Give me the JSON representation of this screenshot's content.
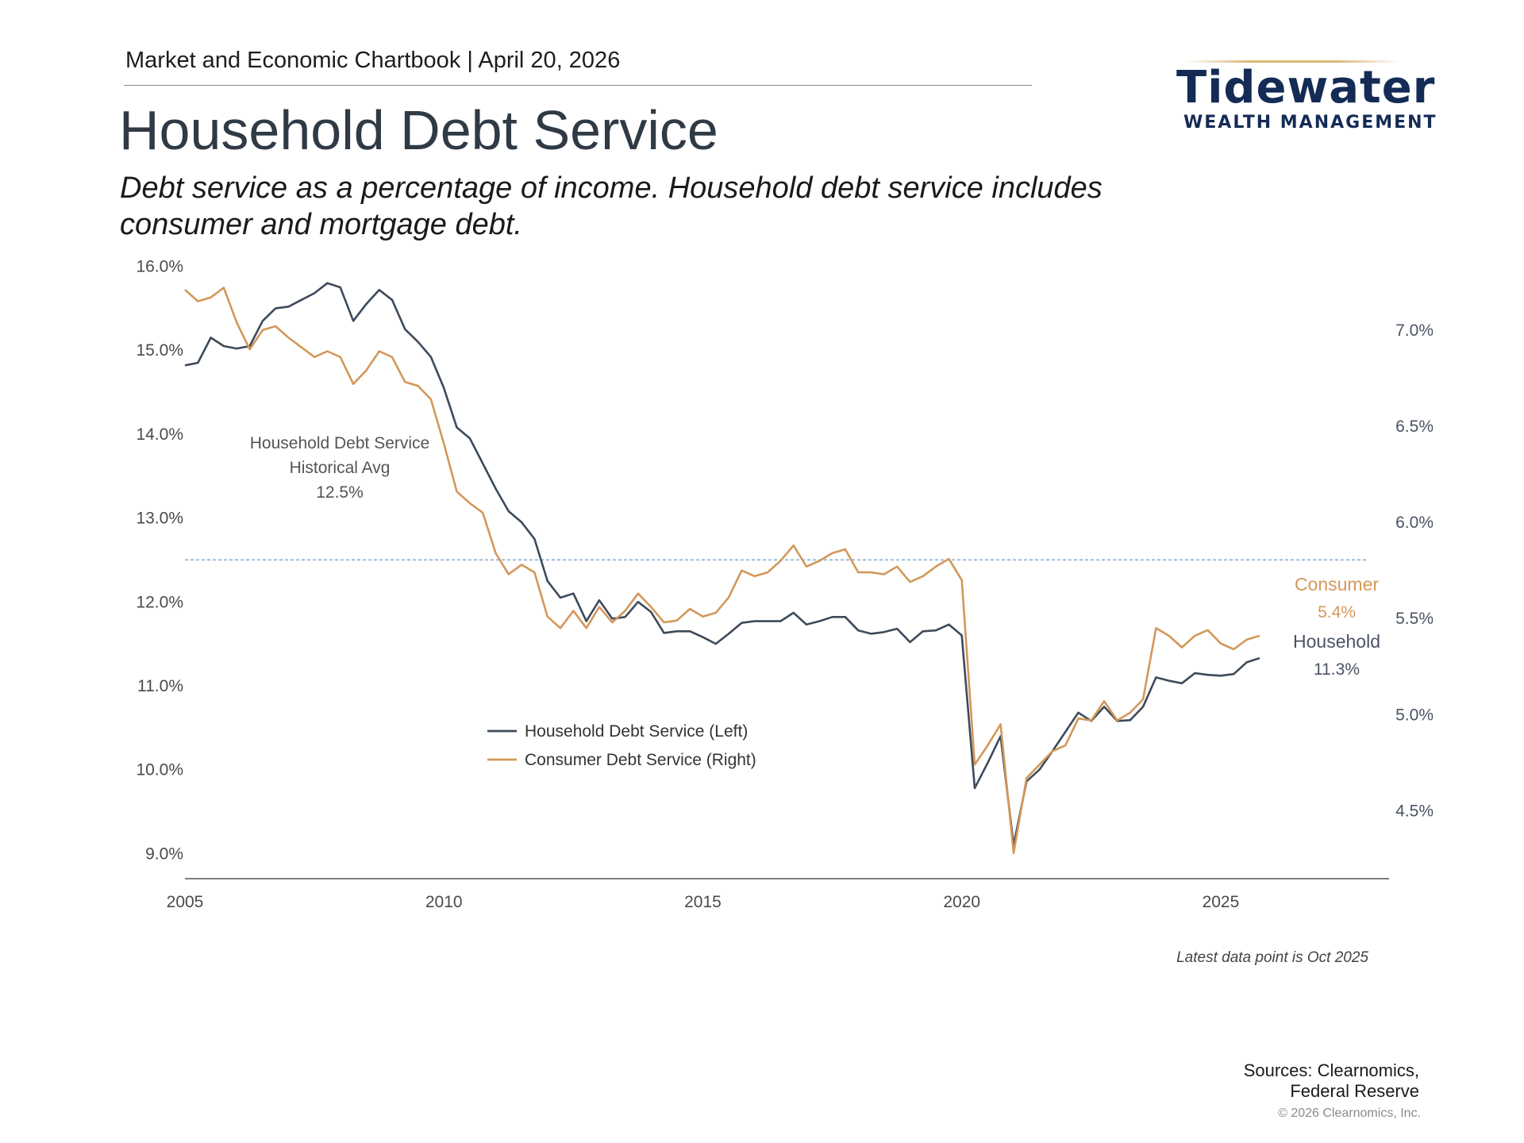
{
  "header": {
    "text": "Market and Economic Chartbook | April 20, 2026"
  },
  "logo": {
    "name": "Tidewater",
    "tagline": "WEALTH MANAGEMENT"
  },
  "title": "Household Debt Service",
  "subtitle_line1": "Debt service as a percentage of income. Household debt service includes",
  "subtitle_line2": "consumer and mortgage debt.",
  "footnote": "Latest data point is Oct 2025",
  "sources_line1": "Sources: Clearnomics,",
  "sources_line2": "Federal Reserve",
  "copyright": "© 2026 Clearnomics, Inc.",
  "colors": {
    "household": "#3d4a5a",
    "consumer": "#d3985a",
    "avg_line": "#7fa8cf",
    "axis": "#555555",
    "tick_text": "#4a4a4a"
  },
  "chart_data": {
    "type": "line",
    "x_ticks": [
      "2005",
      "2010",
      "2015",
      "2020",
      "2025"
    ],
    "x_range": [
      2005,
      2028.25
    ],
    "y_left": {
      "range": [
        8.7,
        16.1
      ],
      "ticks": [
        "16.0%",
        "15.0%",
        "14.0%",
        "13.0%",
        "12.0%",
        "11.0%",
        "10.0%",
        "9.0%"
      ],
      "tick_values": [
        16,
        15,
        14,
        13,
        12,
        11,
        10,
        9
      ]
    },
    "y_right": {
      "range": [
        4.147,
        7.375
      ],
      "ticks": [
        "7.0%",
        "6.5%",
        "6.0%",
        "5.5%",
        "5.0%",
        "4.5%"
      ],
      "tick_values": [
        7.0,
        6.5,
        6.0,
        5.5,
        5.0,
        4.5
      ]
    },
    "legend": [
      {
        "label": "Household Debt Service (Left)",
        "series": "household"
      },
      {
        "label": "Consumer Debt Service (Right)",
        "series": "consumer"
      }
    ],
    "legend_position": "lower-center",
    "annotations": {
      "avg_label": [
        "Household Debt Service",
        "Historical Avg",
        "12.5%"
      ],
      "avg_value": 12.5,
      "consumer_label": [
        "Consumer",
        "5.4%"
      ],
      "household_label": [
        "Household",
        "11.3%"
      ]
    },
    "series": [
      {
        "name": "Household Debt Service (Left)",
        "key": "household",
        "axis": "left",
        "x": [
          2005.0,
          2005.25,
          2005.5,
          2005.75,
          2006.0,
          2006.25,
          2006.5,
          2006.75,
          2007.0,
          2007.25,
          2007.5,
          2007.75,
          2008.0,
          2008.25,
          2008.5,
          2008.75,
          2009.0,
          2009.25,
          2009.5,
          2009.75,
          2010.0,
          2010.25,
          2010.5,
          2010.75,
          2011.0,
          2011.25,
          2011.5,
          2011.75,
          2012.0,
          2012.25,
          2012.5,
          2012.75,
          2013.0,
          2013.25,
          2013.5,
          2013.75,
          2014.0,
          2014.25,
          2014.5,
          2014.75,
          2015.0,
          2015.25,
          2015.5,
          2015.75,
          2016.0,
          2016.25,
          2016.5,
          2016.75,
          2017.0,
          2017.25,
          2017.5,
          2017.75,
          2018.0,
          2018.25,
          2018.5,
          2018.75,
          2019.0,
          2019.25,
          2019.5,
          2019.75,
          2020.0,
          2020.25,
          2020.5,
          2020.75,
          2021.0,
          2021.25,
          2021.5,
          2021.75,
          2022.0,
          2022.25,
          2022.5,
          2022.75,
          2023.0,
          2023.25,
          2023.5,
          2023.75,
          2024.0,
          2024.25,
          2024.5,
          2024.75,
          2025.0,
          2025.25,
          2025.5,
          2025.75
        ],
        "values": [
          14.82,
          14.85,
          15.15,
          15.05,
          15.02,
          15.05,
          15.35,
          15.5,
          15.52,
          15.6,
          15.68,
          15.8,
          15.75,
          15.35,
          15.55,
          15.72,
          15.6,
          15.25,
          15.1,
          14.92,
          14.55,
          14.08,
          13.95,
          13.65,
          13.35,
          13.08,
          12.95,
          12.75,
          12.25,
          12.05,
          12.1,
          11.77,
          12.02,
          11.8,
          11.82,
          12.0,
          11.88,
          11.63,
          11.65,
          11.65,
          11.58,
          11.5,
          11.62,
          11.75,
          11.77,
          11.77,
          11.77,
          11.87,
          11.73,
          11.77,
          11.82,
          11.82,
          11.66,
          11.62,
          11.64,
          11.68,
          11.52,
          11.65,
          11.66,
          11.73,
          11.6,
          9.78,
          10.08,
          10.4,
          9.1,
          9.86,
          10.0,
          10.22,
          10.45,
          10.68,
          10.58,
          10.75,
          10.58,
          10.59,
          10.75,
          11.1,
          11.06,
          11.03,
          11.15,
          11.13,
          11.12,
          11.14,
          11.28,
          11.33
        ]
      },
      {
        "name": "Consumer Debt Service (Right)",
        "key": "consumer",
        "axis": "right",
        "x": [
          2005.0,
          2005.25,
          2005.5,
          2005.75,
          2006.0,
          2006.25,
          2006.5,
          2006.75,
          2007.0,
          2007.25,
          2007.5,
          2007.75,
          2008.0,
          2008.25,
          2008.5,
          2008.75,
          2009.0,
          2009.25,
          2009.5,
          2009.75,
          2010.0,
          2010.25,
          2010.5,
          2010.75,
          2011.0,
          2011.25,
          2011.5,
          2011.75,
          2012.0,
          2012.25,
          2012.5,
          2012.75,
          2013.0,
          2013.25,
          2013.5,
          2013.75,
          2014.0,
          2014.25,
          2014.5,
          2014.75,
          2015.0,
          2015.25,
          2015.5,
          2015.75,
          2016.0,
          2016.25,
          2016.5,
          2016.75,
          2017.0,
          2017.25,
          2017.5,
          2017.75,
          2018.0,
          2018.25,
          2018.5,
          2018.75,
          2019.0,
          2019.25,
          2019.5,
          2019.75,
          2020.0,
          2020.25,
          2020.5,
          2020.75,
          2021.0,
          2021.25,
          2021.5,
          2021.75,
          2022.0,
          2022.25,
          2022.5,
          2022.75,
          2023.0,
          2023.25,
          2023.5,
          2023.75,
          2024.0,
          2024.25,
          2024.5,
          2024.75,
          2025.0,
          2025.25,
          2025.5,
          2025.75
        ],
        "values": [
          7.21,
          7.15,
          7.17,
          7.22,
          7.04,
          6.9,
          7.0,
          7.02,
          6.96,
          6.91,
          6.86,
          6.89,
          6.86,
          6.72,
          6.79,
          6.89,
          6.86,
          6.73,
          6.71,
          6.64,
          6.41,
          6.16,
          6.1,
          6.05,
          5.84,
          5.73,
          5.78,
          5.74,
          5.51,
          5.45,
          5.54,
          5.45,
          5.56,
          5.48,
          5.54,
          5.63,
          5.56,
          5.48,
          5.49,
          5.55,
          5.51,
          5.53,
          5.61,
          5.75,
          5.72,
          5.74,
          5.8,
          5.88,
          5.77,
          5.8,
          5.84,
          5.86,
          5.74,
          5.74,
          5.73,
          5.77,
          5.69,
          5.72,
          5.77,
          5.81,
          5.7,
          4.74,
          4.84,
          4.95,
          4.28,
          4.67,
          4.74,
          4.81,
          4.84,
          4.98,
          4.97,
          5.07,
          4.97,
          5.01,
          5.08,
          5.45,
          5.41,
          5.35,
          5.41,
          5.44,
          5.37,
          5.34,
          5.39,
          5.41
        ]
      }
    ]
  }
}
